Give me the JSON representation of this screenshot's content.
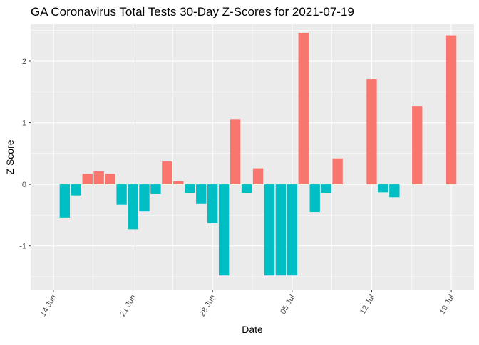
{
  "chart_data": {
    "type": "bar",
    "title": "GA Coronavirus Total Tests 30-Day Z-Scores for 2021-07-19",
    "xlabel": "Date",
    "ylabel": "Z Score",
    "ylim": [
      -1.72,
      2.6
    ],
    "y_ticks": [
      {
        "value": -1,
        "label": "-1"
      },
      {
        "value": 0,
        "label": "0"
      },
      {
        "value": 1,
        "label": "1"
      },
      {
        "value": 2,
        "label": "2"
      }
    ],
    "x_ticks": [
      {
        "date": "2021-06-14",
        "label": "14 Jun"
      },
      {
        "date": "2021-06-21",
        "label": "21 Jun"
      },
      {
        "date": "2021-06-28",
        "label": "28 Jun"
      },
      {
        "date": "2021-07-05",
        "label": "05 Jul"
      },
      {
        "date": "2021-07-12",
        "label": "12 Jul"
      },
      {
        "date": "2021-07-19",
        "label": "19 Jul"
      }
    ],
    "x_range": [
      "2021-06-12",
      "2021-07-21"
    ],
    "colors": {
      "positive": "#F8766D",
      "negative": "#00BFC4",
      "panel": "#EBEBEB",
      "grid": "#FFFFFF"
    },
    "points": [
      {
        "date": "2021-06-15",
        "value": -0.54
      },
      {
        "date": "2021-06-16",
        "value": -0.18
      },
      {
        "date": "2021-06-17",
        "value": 0.17
      },
      {
        "date": "2021-06-18",
        "value": 0.21
      },
      {
        "date": "2021-06-19",
        "value": 0.17
      },
      {
        "date": "2021-06-20",
        "value": -0.33
      },
      {
        "date": "2021-06-21",
        "value": -0.73
      },
      {
        "date": "2021-06-22",
        "value": -0.44
      },
      {
        "date": "2021-06-23",
        "value": -0.16
      },
      {
        "date": "2021-06-24",
        "value": 0.37
      },
      {
        "date": "2021-06-25",
        "value": 0.05
      },
      {
        "date": "2021-06-26",
        "value": -0.14
      },
      {
        "date": "2021-06-27",
        "value": -0.32
      },
      {
        "date": "2021-06-28",
        "value": -0.63
      },
      {
        "date": "2021-06-29",
        "value": -1.48
      },
      {
        "date": "2021-06-30",
        "value": 1.06
      },
      {
        "date": "2021-07-01",
        "value": -0.14
      },
      {
        "date": "2021-07-02",
        "value": 0.26
      },
      {
        "date": "2021-07-03",
        "value": -1.48
      },
      {
        "date": "2021-07-04",
        "value": -1.48
      },
      {
        "date": "2021-07-05",
        "value": -1.48
      },
      {
        "date": "2021-07-06",
        "value": 2.46
      },
      {
        "date": "2021-07-07",
        "value": -0.45
      },
      {
        "date": "2021-07-08",
        "value": -0.14
      },
      {
        "date": "2021-07-09",
        "value": 0.42
      },
      {
        "date": "2021-07-12",
        "value": 1.71
      },
      {
        "date": "2021-07-13",
        "value": -0.13
      },
      {
        "date": "2021-07-14",
        "value": -0.21
      },
      {
        "date": "2021-07-16",
        "value": 1.27
      },
      {
        "date": "2021-07-19",
        "value": 2.42
      }
    ]
  }
}
